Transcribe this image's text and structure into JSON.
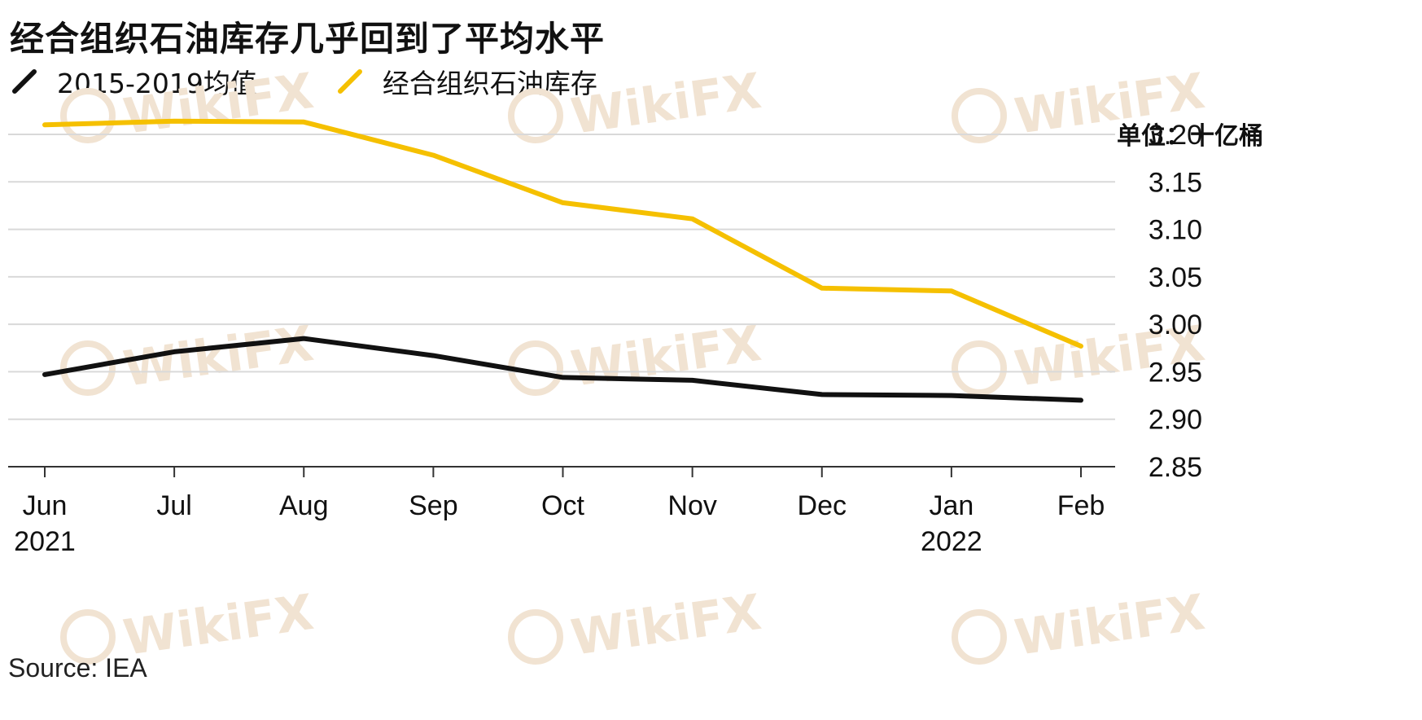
{
  "watermark": "WikiFX",
  "source": "Source: IEA",
  "colors": {
    "stock": "#f5c000",
    "average": "#111111",
    "grid": "#d9d9d9",
    "axis": "#333333",
    "watermark": "#f1e3d2"
  },
  "chart_data": {
    "type": "line",
    "title": "经合组织石油库存几乎回到了平均水平",
    "unit": "单位：十亿桶",
    "categories": [
      "Jun",
      "Jul",
      "Aug",
      "Sep",
      "Oct",
      "Nov",
      "Dec",
      "Jan",
      "Feb"
    ],
    "year_labels": [
      {
        "index": 0,
        "label": "2021"
      },
      {
        "index": 7,
        "label": "2022"
      }
    ],
    "series": [
      {
        "name": "2015-2019均值",
        "color": "#111111",
        "values": [
          2.947,
          2.971,
          2.985,
          2.967,
          2.944,
          2.941,
          2.926,
          2.925,
          2.92
        ]
      },
      {
        "name": "经合组织石油库存",
        "color": "#f5c000",
        "values": [
          3.21,
          3.214,
          3.213,
          3.178,
          3.128,
          3.111,
          3.038,
          3.035,
          2.977
        ]
      }
    ],
    "ylim": [
      2.85,
      3.2
    ],
    "yticks": [
      "3.20",
      "3.15",
      "3.10",
      "3.05",
      "3.00",
      "2.95",
      "2.90",
      "2.85"
    ],
    "grid": true,
    "legend": "top-left"
  }
}
